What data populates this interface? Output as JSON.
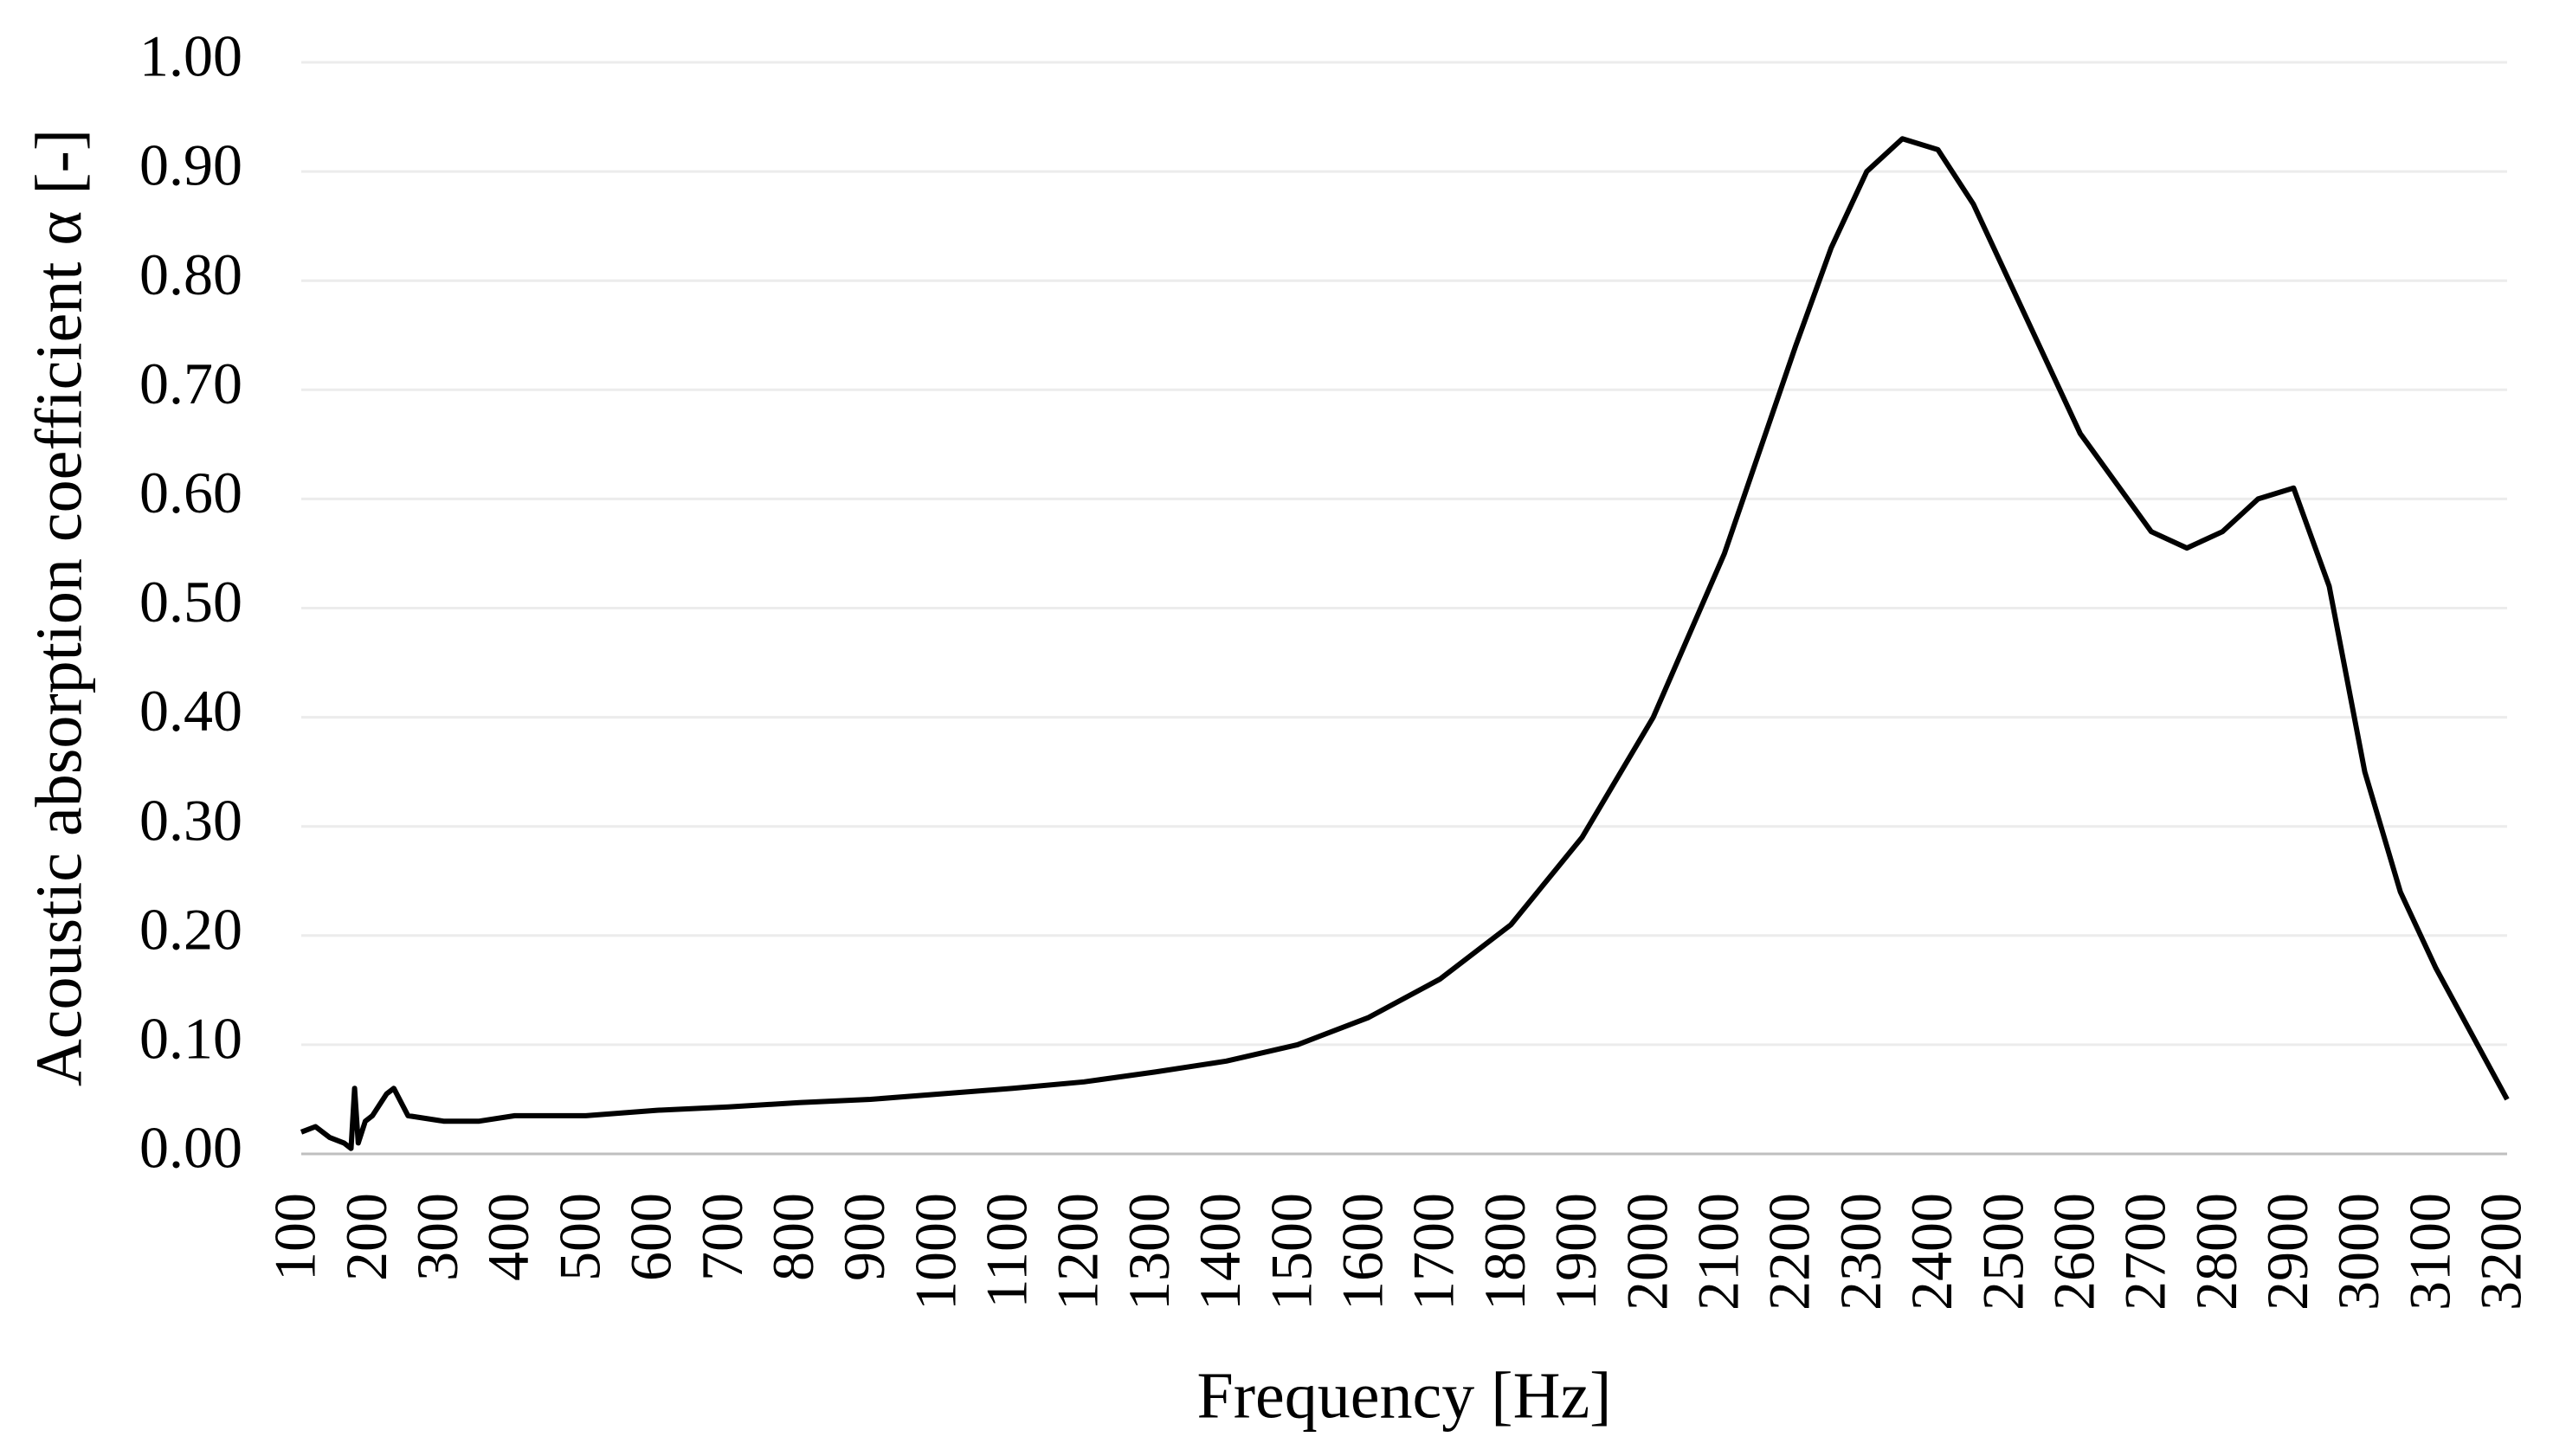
{
  "chart_data": {
    "type": "line",
    "xlabel": "Frequency [Hz]",
    "ylabel": "Acoustic absorption coefficient α [-]",
    "x": [
      100,
      120,
      140,
      160,
      170,
      175,
      180,
      190,
      200,
      220,
      230,
      250,
      300,
      350,
      400,
      450,
      500,
      600,
      700,
      800,
      900,
      1000,
      1100,
      1200,
      1300,
      1400,
      1500,
      1600,
      1700,
      1800,
      1900,
      2000,
      2100,
      2200,
      2250,
      2300,
      2350,
      2400,
      2450,
      2500,
      2600,
      2700,
      2750,
      2800,
      2850,
      2900,
      2950,
      3000,
      3050,
      3100,
      3150,
      3200
    ],
    "series": [
      {
        "name": "α",
        "color": "#000000",
        "values": [
          0.02,
          0.025,
          0.015,
          0.01,
          0.005,
          0.06,
          0.01,
          0.03,
          0.035,
          0.055,
          0.06,
          0.035,
          0.03,
          0.03,
          0.035,
          0.035,
          0.035,
          0.04,
          0.043,
          0.047,
          0.05,
          0.055,
          0.06,
          0.066,
          0.075,
          0.085,
          0.1,
          0.125,
          0.16,
          0.21,
          0.29,
          0.4,
          0.55,
          0.74,
          0.83,
          0.9,
          0.93,
          0.92,
          0.87,
          0.8,
          0.66,
          0.57,
          0.555,
          0.57,
          0.6,
          0.61,
          0.52,
          0.35,
          0.24,
          0.17,
          0.11,
          0.05
        ]
      }
    ],
    "xlim": [
      100,
      3200
    ],
    "xticks": [
      100,
      200,
      300,
      400,
      500,
      600,
      700,
      800,
      900,
      1000,
      1100,
      1200,
      1300,
      1400,
      1500,
      1600,
      1700,
      1800,
      1900,
      2000,
      2100,
      2200,
      2300,
      2400,
      2500,
      2600,
      2700,
      2800,
      2900,
      3000,
      3100,
      3200
    ],
    "ylim": [
      0,
      1
    ],
    "yticks": [
      {
        "value": 0,
        "label": "0.00"
      },
      {
        "value": 0.1,
        "label": "0.10"
      },
      {
        "value": 0.2,
        "label": "0.20"
      },
      {
        "value": 0.3,
        "label": "0.30"
      },
      {
        "value": 0.4,
        "label": "0.40"
      },
      {
        "value": 0.5,
        "label": "0.50"
      },
      {
        "value": 0.6,
        "label": "0.60"
      },
      {
        "value": 0.7,
        "label": "0.70"
      },
      {
        "value": 0.8,
        "label": "0.80"
      },
      {
        "value": 0.9,
        "label": "0.90"
      },
      {
        "value": 1,
        "label": "1.00"
      }
    ],
    "grid": true
  }
}
